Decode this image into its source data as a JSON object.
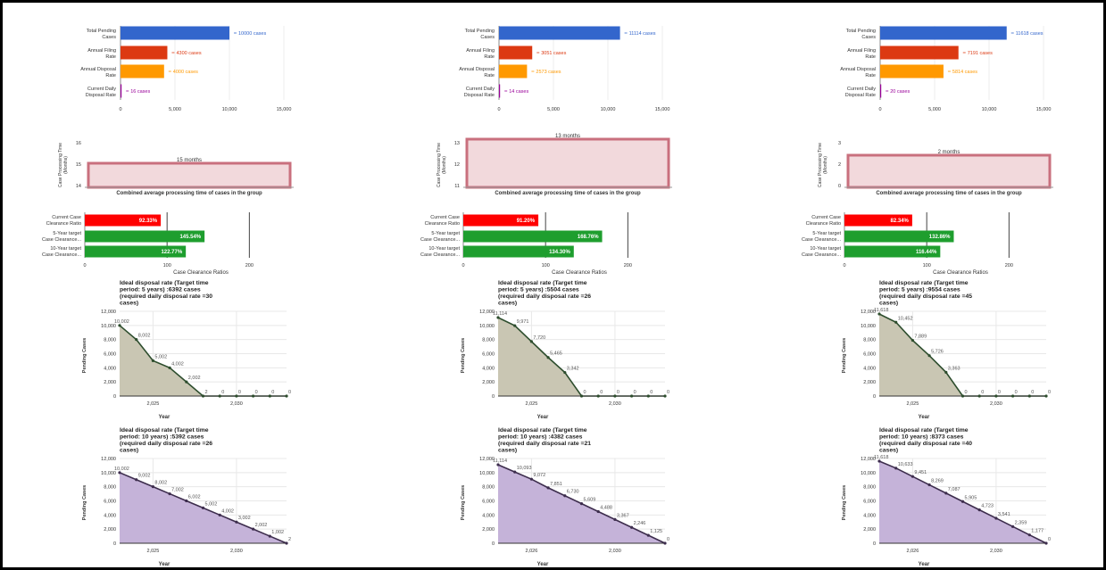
{
  "chart_data": [
    {
      "type": "bar",
      "orientation": "horizontal",
      "categories": [
        "Total Pending Cases",
        "Annual Filing Rate",
        "Annual Disposal Rate",
        "Current Daily Disposal Rate"
      ],
      "values": [
        10000,
        4300,
        4000,
        16
      ],
      "value_labels": [
        "10000 cases",
        "4300 cases",
        "4000 cases",
        "16 cases"
      ],
      "colors": [
        "#3366cc",
        "#dc3912",
        "#ff9900",
        "#990099"
      ],
      "xticks": [
        "0",
        "5,000",
        "10,000",
        "15,000"
      ],
      "xlim": [
        0,
        15000
      ]
    },
    {
      "type": "bar",
      "orientation": "horizontal",
      "categories": [
        "Total Pending Cases",
        "Annual Filing Rate",
        "Annual Disposal Rate",
        "Current Daily Disposal Rate"
      ],
      "values": [
        11114,
        3051,
        2573,
        14
      ],
      "value_labels": [
        "11114 cases",
        "3051 cases",
        "2573 cases",
        "14 cases"
      ],
      "colors": [
        "#3366cc",
        "#dc3912",
        "#ff9900",
        "#990099"
      ],
      "xticks": [
        "0",
        "5,000",
        "10,000",
        "15,000"
      ],
      "xlim": [
        0,
        15000
      ]
    },
    {
      "type": "bar",
      "orientation": "horizontal",
      "categories": [
        "Total Pending Cases",
        "Annual Filing Rate",
        "Annual Disposal Rate",
        "Current Daily Disposal Rate"
      ],
      "values": [
        11618,
        7191,
        5814,
        20
      ],
      "value_labels": [
        "11618 cases",
        "7191 cases",
        "5814 cases",
        "20 cases"
      ],
      "colors": [
        "#3366cc",
        "#dc3912",
        "#ff9900",
        "#990099"
      ],
      "xticks": [
        "0",
        "5,000",
        "10,000",
        "15,000"
      ],
      "xlim": [
        0,
        15000
      ]
    },
    {
      "type": "bar",
      "value": 15,
      "value_label": "15 months",
      "yticks": [
        "16",
        "15",
        "14"
      ],
      "ylim": [
        14,
        16
      ],
      "ylabel": "Case Processing Time (Months)",
      "xlabel": "Combined average processing time of cases in the group",
      "color": "#f2d9dc",
      "edge": "#c9707e"
    },
    {
      "type": "bar",
      "value": 13,
      "value_label": "13 months",
      "yticks": [
        "13",
        "12",
        "11"
      ],
      "ylim": [
        11,
        13
      ],
      "ylabel": "Case Processing Time (Months)",
      "xlabel": "Combined average processing time of cases in the group",
      "color": "#f2d9dc",
      "edge": "#c9707e"
    },
    {
      "type": "bar",
      "value": 2,
      "value_label": "2 months",
      "yticks": [
        "3",
        "2",
        "0"
      ],
      "ylim": [
        0,
        3
      ],
      "ylabel": "Case Processing Time (Months)",
      "xlabel": "Combined average processing time of cases in the group",
      "color": "#f2d9dc",
      "edge": "#c9707e"
    },
    {
      "type": "bar",
      "orientation": "horizontal",
      "categories": [
        "Current Case Clearance Ratio",
        "5-Year target Case Clearance...",
        "10-Year target Case Clearance..."
      ],
      "values": [
        92.33,
        145.54,
        122.77
      ],
      "value_labels": [
        "92.33%",
        "145.54%",
        "122.77%"
      ],
      "colors": [
        "#ff0000",
        "#1e9e2e",
        "#1e9e2e"
      ],
      "xlabel": "Case Clearance Ratios",
      "xticks": [
        "0",
        "100",
        "200"
      ],
      "xlim": [
        0,
        230
      ]
    },
    {
      "type": "bar",
      "orientation": "horizontal",
      "categories": [
        "Current Case Clearance Ratio",
        "5-Year target Case Clearance...",
        "10-Year target Case Clearance..."
      ],
      "values": [
        91.2,
        168.76,
        134.3
      ],
      "value_labels": [
        "91.20%",
        "168.76%",
        "134.30%"
      ],
      "colors": [
        "#ff0000",
        "#1e9e2e",
        "#1e9e2e"
      ],
      "xlabel": "Case Clearance Ratios",
      "xticks": [
        "0",
        "100",
        "200"
      ],
      "xlim": [
        0,
        230
      ]
    },
    {
      "type": "bar",
      "orientation": "horizontal",
      "categories": [
        "Current Case Clearance Ratio",
        "5-Year target Case Clearance...",
        "10-Year target Case Clearance..."
      ],
      "values": [
        82.34,
        132.86,
        116.44
      ],
      "value_labels": [
        "82.34%",
        "132.86%",
        "116.44%"
      ],
      "colors": [
        "#ff0000",
        "#1e9e2e",
        "#1e9e2e"
      ],
      "xlabel": "Case Clearance Ratios",
      "xticks": [
        "0",
        "100",
        "200"
      ],
      "xlim": [
        0,
        230
      ]
    },
    {
      "type": "area",
      "title": [
        "Ideal disposal rate (Target time",
        "period: 5 years) :6392 cases",
        "(required daily disposal rate =30",
        "cases)"
      ],
      "xlabel": "Year",
      "ylabel": "Pending Cases",
      "xticks": [
        "2,025",
        "2,030"
      ],
      "yticks": [
        "0",
        "2,000",
        "4,000",
        "6,000",
        "8,000",
        "10,000",
        "12,000"
      ],
      "ylim": [
        0,
        12000
      ],
      "points": [
        10002,
        8002,
        5002,
        4002,
        2002,
        2,
        0,
        0,
        0,
        0,
        0
      ],
      "point_labels": [
        "10,002",
        "8,002",
        "5,002",
        "4,002",
        "2,002",
        "2",
        "0",
        "0",
        "0",
        "0",
        "0"
      ],
      "fill": "#c9c6b3",
      "line": "#2d4d2d"
    },
    {
      "type": "area",
      "title": [
        "Ideal disposal rate (Target time",
        "period: 5 years) :5504 cases",
        "(required daily disposal rate =26",
        "cases)"
      ],
      "xlabel": "Year",
      "ylabel": "Pending Cases",
      "xticks": [
        "2,025",
        "2,030"
      ],
      "yticks": [
        "0",
        "2,000",
        "4,000",
        "6,000",
        "8,000",
        "10,000",
        "12,000"
      ],
      "ylim": [
        0,
        12000
      ],
      "points": [
        11114,
        9971,
        7720,
        5465,
        3342,
        0,
        0,
        0,
        0,
        0,
        0
      ],
      "point_labels": [
        "11,114",
        "9,971",
        "7,720",
        "5,465",
        "3,342",
        "0",
        "0",
        "0",
        "0",
        "0",
        "0"
      ],
      "fill": "#c9c6b3",
      "line": "#2d4d2d"
    },
    {
      "type": "area",
      "title": [
        "Ideal disposal rate (Target time",
        "period: 5 years) :9554 cases",
        "(required daily disposal rate =45",
        "cases)"
      ],
      "xlabel": "Year",
      "ylabel": "Pending Cases",
      "xticks": [
        "2,025",
        "2,030"
      ],
      "yticks": [
        "0",
        "2,000",
        "4,000",
        "6,000",
        "8,000",
        "10,000",
        "12,000"
      ],
      "ylim": [
        0,
        12000
      ],
      "points": [
        11618,
        10452,
        7889,
        5726,
        3363,
        0,
        0,
        0,
        0,
        0,
        0
      ],
      "point_labels": [
        "11,618",
        "10,452",
        "7,889",
        "5,726",
        "3,363",
        "0",
        "0",
        "0",
        "0",
        "0",
        "0"
      ],
      "fill": "#c9c6b3",
      "line": "#2d4d2d"
    },
    {
      "type": "area",
      "title": [
        "Ideal disposal rate (Target time",
        "period: 10 years) :5392 cases",
        "(required daily disposal rate =26",
        "cases)"
      ],
      "xlabel": "Year",
      "ylabel": "Pending Cases",
      "xticks": [
        "2,025",
        "2,030"
      ],
      "yticks": [
        "0",
        "2,000",
        "4,000",
        "6,000",
        "8,000",
        "10,000",
        "12,000"
      ],
      "ylim": [
        0,
        12000
      ],
      "points": [
        10002,
        9002,
        8002,
        7002,
        6002,
        5002,
        4002,
        3002,
        2002,
        1002,
        2
      ],
      "point_labels": [
        "10,002",
        "9,002",
        "8,002",
        "7,002",
        "6,002",
        "5,002",
        "4,002",
        "3,002",
        "2,002",
        "1,002",
        "2"
      ],
      "fill": "#c5b3d9",
      "line": "#3d2d4d"
    },
    {
      "type": "area",
      "title": [
        "Ideal disposal rate (Target time",
        "period: 10 years) :4382 cases",
        "(required daily disposal rate =21",
        "cases)"
      ],
      "xlabel": "Year",
      "ylabel": "Pending Cases",
      "xticks": [
        "2,026",
        "2,030"
      ],
      "yticks": [
        "0",
        "2,000",
        "4,000",
        "6,000",
        "8,000",
        "10,000",
        "12,000"
      ],
      "ylim": [
        0,
        12000
      ],
      "points": [
        11114,
        10093,
        9072,
        7851,
        6730,
        5609,
        4488,
        3367,
        2246,
        1125,
        0
      ],
      "point_labels": [
        "11,114",
        "10,093",
        "9,072",
        "7,851",
        "6,730",
        "5,609",
        "4,488",
        "3,367",
        "2,246",
        "1,125",
        "0"
      ],
      "fill": "#c5b3d9",
      "line": "#3d2d4d"
    },
    {
      "type": "area",
      "title": [
        "Ideal disposal rate (Target time",
        "period: 10 years) :8373 cases",
        "(required daily disposal rate =40",
        "cases)"
      ],
      "xlabel": "Year",
      "ylabel": "Pending Cases",
      "xticks": [
        "2,026",
        "2,030"
      ],
      "yticks": [
        "0",
        "2,000",
        "4,000",
        "6,000",
        "8,000",
        "10,000",
        "12,000"
      ],
      "ylim": [
        0,
        12000
      ],
      "points": [
        11618,
        10633,
        9451,
        8269,
        7087,
        5905,
        4723,
        3541,
        2359,
        1177,
        0
      ],
      "point_labels": [
        "11,618",
        "10,633",
        "9,451",
        "8,269",
        "7,087",
        "5,905",
        "4,723",
        "3,541",
        "2,359",
        "1,177",
        "0"
      ],
      "fill": "#c5b3d9",
      "line": "#3d2d4d"
    }
  ]
}
